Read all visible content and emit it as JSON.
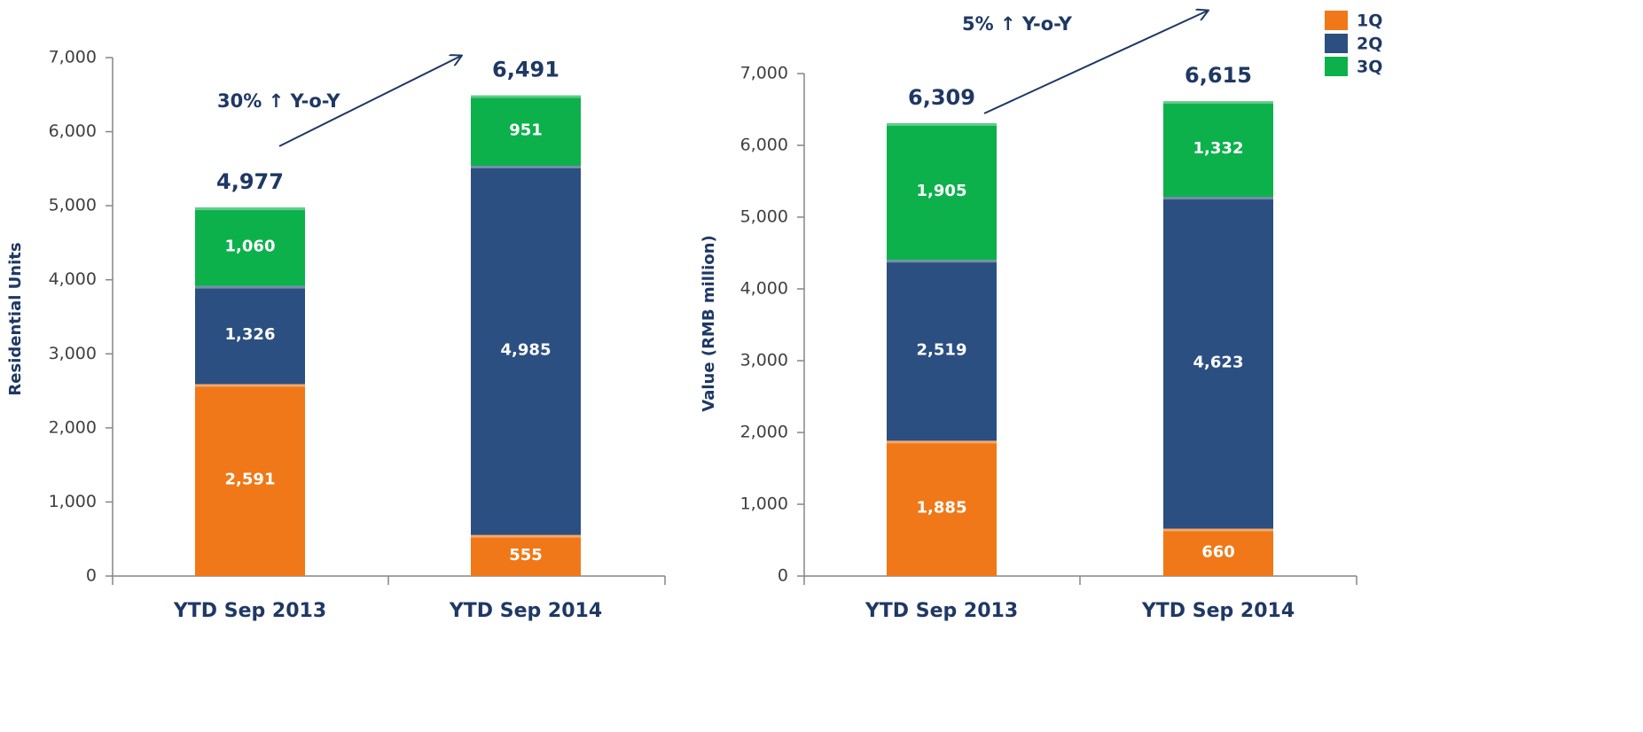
{
  "chart_data": [
    {
      "type": "stacked_bar",
      "y_label": "Residential Units",
      "annotation": "30% ↑ Y-o-Y",
      "categories": [
        "YTD Sep 2013",
        "YTD Sep 2014"
      ],
      "series": [
        {
          "name": "1Q",
          "color": "#f07818",
          "values": [
            2591,
            555
          ],
          "value_labels": [
            "2,591",
            "555"
          ]
        },
        {
          "name": "2Q",
          "color": "#2b4f81",
          "values": [
            1326,
            4985
          ],
          "value_labels": [
            "1,326",
            "4,985"
          ]
        },
        {
          "name": "3Q",
          "color": "#0db14b",
          "values": [
            1060,
            951
          ],
          "value_labels": [
            "1,060",
            "951"
          ]
        }
      ],
      "totals": [
        4977,
        6491
      ],
      "total_labels": [
        "4,977",
        "6,491"
      ],
      "ylim": [
        0,
        7000
      ],
      "yticks": [
        0,
        {
          "value": 1000,
          "label": "1,000"
        },
        {
          "value": 2000,
          "label": "2,000"
        },
        {
          "value": 3000,
          "label": "3,000"
        },
        {
          "value": 4000,
          "label": "4,000"
        },
        {
          "value": 5000,
          "label": "5,000"
        },
        {
          "value": 6000,
          "label": "6,000"
        },
        {
          "value": 7000,
          "label": "7,000"
        }
      ]
    },
    {
      "type": "stacked_bar",
      "y_label": "Value (RMB million)",
      "annotation": "5% ↑ Y-o-Y",
      "categories": [
        "YTD Sep 2013",
        "YTD Sep 2014"
      ],
      "series": [
        {
          "name": "1Q",
          "color": "#f07818",
          "values": [
            1885,
            660
          ],
          "value_labels": [
            "1,885",
            "660"
          ]
        },
        {
          "name": "2Q",
          "color": "#2b4f81",
          "values": [
            2519,
            4623
          ],
          "value_labels": [
            "2,519",
            "4,623"
          ]
        },
        {
          "name": "3Q",
          "color": "#0db14b",
          "values": [
            1905,
            1332
          ],
          "value_labels": [
            "1,905",
            "1,332"
          ]
        }
      ],
      "totals": [
        6309,
        6615
      ],
      "total_labels": [
        "6,309",
        "6,615"
      ],
      "ylim": [
        0,
        7000
      ],
      "yticks": [
        0,
        {
          "value": 1000,
          "label": "1,000"
        },
        {
          "value": 2000,
          "label": "2,000"
        },
        {
          "value": 3000,
          "label": "3,000"
        },
        {
          "value": 4000,
          "label": "4,000"
        },
        {
          "value": 5000,
          "label": "5,000"
        },
        {
          "value": 6000,
          "label": "6,000"
        },
        {
          "value": 7000,
          "label": "7,000"
        }
      ],
      "legend": "top-right"
    }
  ]
}
